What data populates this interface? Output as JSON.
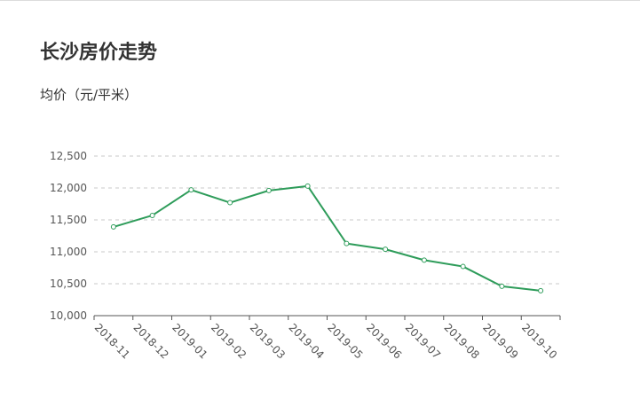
{
  "page": {
    "title": "长沙房价走势",
    "subtitle": "均价（元/平米）"
  },
  "colors": {
    "line": "#2e9c5a",
    "grid": "#c8c8c8",
    "axis": "#555555",
    "marker_fill": "#ffffff"
  },
  "chart_data": {
    "type": "line",
    "title": "长沙房价走势",
    "ylabel": "均价（元/平米）",
    "xlabel": "",
    "categories": [
      "2018-11",
      "2018-12",
      "2019-01",
      "2019-02",
      "2019-03",
      "2019-04",
      "2019-05",
      "2019-06",
      "2019-07",
      "2019-08",
      "2019-09",
      "2019-10"
    ],
    "y_tick_labels": [
      "10,000",
      "10,500",
      "11,000",
      "11,500",
      "12,000",
      "12,500"
    ],
    "y_ticks": [
      10000,
      10500,
      11000,
      11500,
      12000,
      12500
    ],
    "ylim": [
      10000,
      12500
    ],
    "grid": "horizontal-dashed",
    "series": [
      {
        "values": [
          11390,
          11570,
          11970,
          11770,
          11960,
          12030,
          11130,
          11040,
          10870,
          10770,
          10460,
          10390
        ]
      }
    ]
  }
}
